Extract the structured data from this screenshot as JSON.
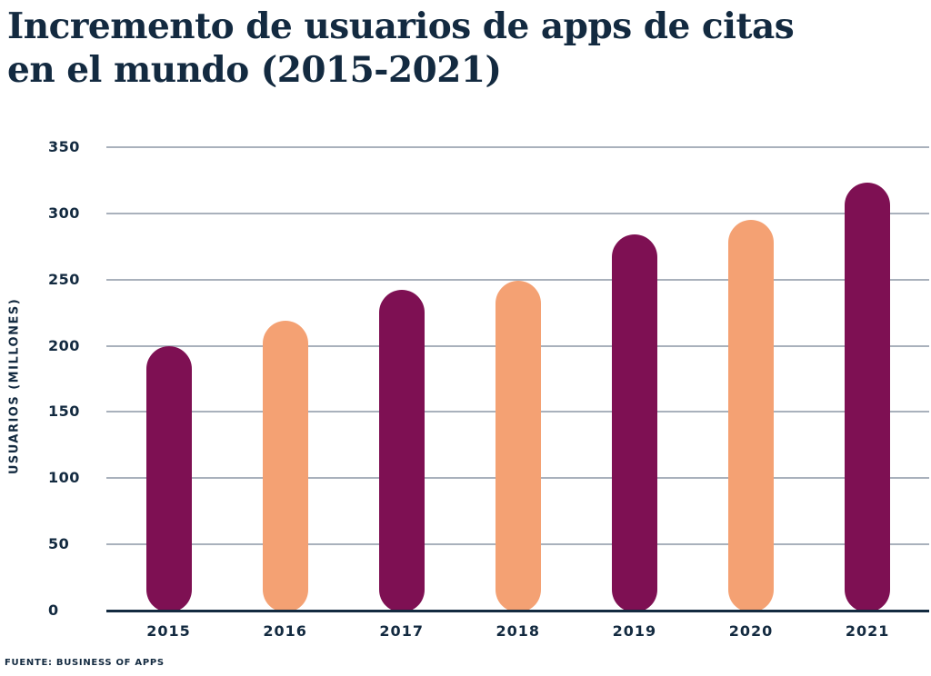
{
  "title": {
    "line1": "Incremento de usuarios de apps de citas",
    "line2": "en el mundo (2015-2021)"
  },
  "source": "FUENTE: BUSINESS OF APPS",
  "colors": {
    "background": "#FFFFFF",
    "text_navy": "#132A40",
    "bar_purple": "#7E1053",
    "bar_orange": "#F4A173",
    "gridline_gray": "#A9B1BC",
    "axis_navy": "#132A40"
  },
  "chart_data": {
    "type": "bar",
    "title": "Incremento de usuarios de apps de citas en el mundo (2015-2021)",
    "categories": [
      "2015",
      "2016",
      "2017",
      "2018",
      "2019",
      "2020",
      "2021"
    ],
    "values": [
      200,
      219,
      242,
      249,
      284,
      295,
      323
    ],
    "bar_colors": [
      "#7E1053",
      "#F4A173",
      "#7E1053",
      "#F4A173",
      "#7E1053",
      "#F4A173",
      "#7E1053"
    ],
    "xlabel": "",
    "ylabel": "USUARIOS (MILLONES)",
    "ylim": [
      0,
      350
    ],
    "yticks": [
      0,
      50,
      100,
      150,
      200,
      250,
      300,
      350
    ],
    "grid": true,
    "legend": false
  }
}
